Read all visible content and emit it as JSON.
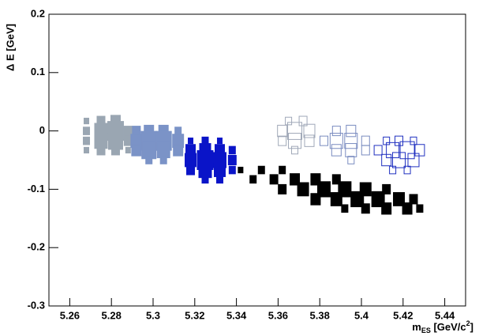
{
  "chart_data": {
    "type": "box2d",
    "x_label": {
      "main": "m",
      "sub": "ES",
      "unit": " [GeV/c",
      "sup": "2",
      "close": "]"
    },
    "y_label": "Δ E [GeV]",
    "xlim": [
      5.25,
      5.45
    ],
    "ylim": [
      -0.3,
      0.2
    ],
    "xticks": [
      5.26,
      5.28,
      5.3,
      5.32,
      5.34,
      5.36,
      5.38,
      5.4,
      5.42,
      5.44
    ],
    "yticks": [
      -0.3,
      -0.2,
      -0.1,
      0,
      0.1,
      0.2
    ],
    "series": [
      {
        "color": "#9aa6b2",
        "filled": true,
        "x": [
          5.268,
          5.275,
          5.282,
          5.268,
          5.275,
          5.282,
          5.288,
          5.268,
          5.275,
          5.282,
          5.288,
          5.268,
          5.275,
          5.282,
          5.288
        ],
        "y": [
          0.017,
          0.017,
          0.017,
          0,
          0,
          0,
          0,
          -0.017,
          -0.017,
          -0.017,
          -0.017,
          -0.033,
          -0.033,
          -0.033,
          -0.033
        ],
        "values": [
          0.3,
          0.5,
          0.6,
          0.4,
          0.8,
          1.0,
          0.5,
          0.4,
          0.8,
          0.9,
          0.5,
          0.3,
          0.5,
          0.5,
          0.3
        ]
      },
      {
        "color": "#7b93c7",
        "filled": true,
        "x": [
          5.292,
          5.298,
          5.305,
          5.312,
          5.292,
          5.298,
          5.305,
          5.312,
          5.292,
          5.298,
          5.305,
          5.312,
          5.298,
          5.305
        ],
        "y": [
          0,
          0,
          0,
          0,
          -0.017,
          -0.017,
          -0.017,
          -0.017,
          -0.033,
          -0.033,
          -0.033,
          -0.033,
          -0.05,
          -0.05
        ],
        "values": [
          0.5,
          0.6,
          0.6,
          0.4,
          0.7,
          1.0,
          1.0,
          0.7,
          0.6,
          0.9,
          0.8,
          0.6,
          0.4,
          0.4
        ]
      },
      {
        "color": "#0a14c8",
        "filled": true,
        "x": [
          5.318,
          5.325,
          5.332,
          5.318,
          5.325,
          5.332,
          5.338,
          5.318,
          5.325,
          5.332,
          5.338,
          5.318,
          5.325,
          5.332,
          5.338,
          5.325,
          5.332
        ],
        "y": [
          -0.017,
          -0.017,
          -0.017,
          -0.033,
          -0.033,
          -0.033,
          -0.033,
          -0.05,
          -0.05,
          -0.05,
          -0.05,
          -0.067,
          -0.067,
          -0.067,
          -0.067,
          -0.083,
          -0.083
        ],
        "values": [
          0.3,
          0.4,
          0.3,
          0.6,
          0.7,
          0.6,
          0.4,
          0.7,
          1.0,
          0.8,
          0.5,
          0.5,
          0.8,
          0.7,
          0.4,
          0.4,
          0.4
        ]
      },
      {
        "color": "#000000",
        "filled": true,
        "x": [
          5.342,
          5.352,
          5.362,
          5.348,
          5.358,
          5.368,
          5.378,
          5.388,
          5.362,
          5.372,
          5.382,
          5.392,
          5.402,
          5.412,
          5.378,
          5.388,
          5.398,
          5.408,
          5.418,
          5.425,
          5.392,
          5.402,
          5.412,
          5.422,
          5.428
        ],
        "y": [
          -0.067,
          -0.067,
          -0.067,
          -0.083,
          -0.083,
          -0.083,
          -0.083,
          -0.083,
          -0.1,
          -0.1,
          -0.1,
          -0.1,
          -0.1,
          -0.1,
          -0.117,
          -0.117,
          -0.117,
          -0.117,
          -0.117,
          -0.117,
          -0.133,
          -0.133,
          -0.133,
          -0.133,
          -0.133
        ],
        "values": [
          0.3,
          0.4,
          0.4,
          0.4,
          0.5,
          0.6,
          0.6,
          0.5,
          0.5,
          0.7,
          0.8,
          0.8,
          0.7,
          0.5,
          0.6,
          0.7,
          0.8,
          0.8,
          0.7,
          0.5,
          0.4,
          0.5,
          0.6,
          0.6,
          0.4
        ]
      },
      {
        "color": "#a0a8b8",
        "filled": false,
        "x": [
          5.365,
          5.372,
          5.362,
          5.368,
          5.375,
          5.362,
          5.368,
          5.375,
          5.368
        ],
        "y": [
          0.017,
          0.017,
          0,
          0,
          0,
          -0.017,
          -0.017,
          -0.017,
          -0.033
        ],
        "values": [
          0.4,
          0.5,
          0.6,
          0.9,
          0.7,
          0.5,
          0.8,
          0.6,
          0.4
        ]
      },
      {
        "color": "#7a8cc0",
        "filled": false,
        "x": [
          5.388,
          5.395,
          5.382,
          5.388,
          5.395,
          5.402,
          5.388,
          5.395,
          5.402,
          5.395
        ],
        "y": [
          0,
          0,
          -0.017,
          -0.017,
          -0.017,
          -0.017,
          -0.033,
          -0.033,
          -0.033,
          -0.05
        ],
        "values": [
          0.5,
          0.6,
          0.5,
          0.8,
          0.8,
          0.5,
          0.6,
          0.7,
          0.5,
          0.4
        ]
      },
      {
        "color": "#2030c0",
        "filled": false,
        "x": [
          5.412,
          5.418,
          5.425,
          5.408,
          5.415,
          5.422,
          5.428,
          5.412,
          5.418,
          5.425,
          5.415,
          5.422
        ],
        "y": [
          -0.017,
          -0.017,
          -0.017,
          -0.033,
          -0.033,
          -0.033,
          -0.033,
          -0.05,
          -0.05,
          -0.05,
          -0.067,
          -0.067
        ],
        "values": [
          0.4,
          0.5,
          0.4,
          0.5,
          0.8,
          0.9,
          0.6,
          0.6,
          0.8,
          0.7,
          0.4,
          0.4
        ]
      }
    ]
  }
}
